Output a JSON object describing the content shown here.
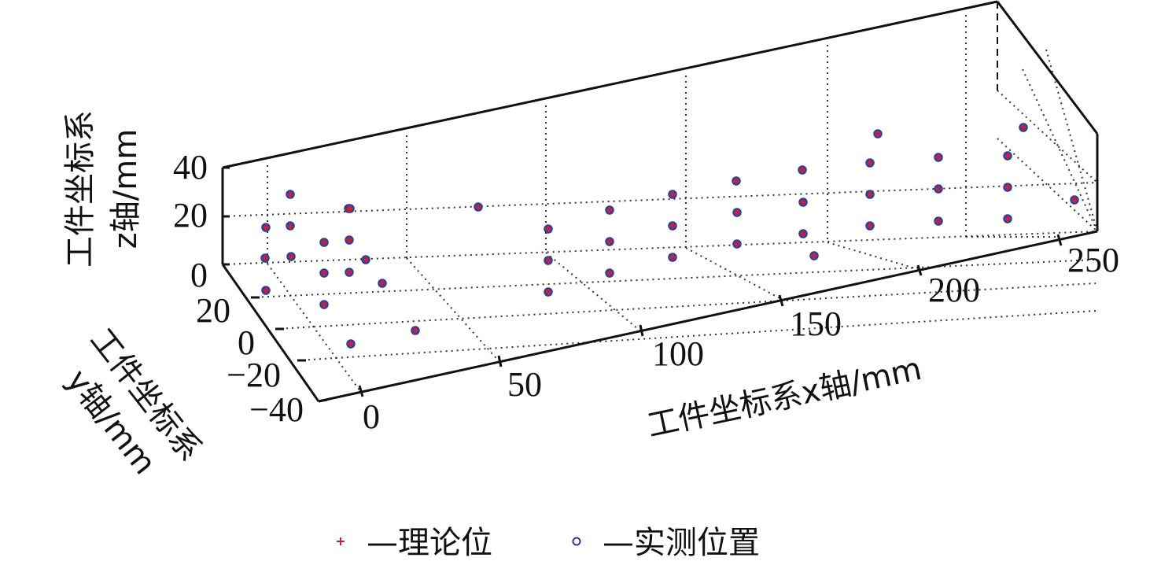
{
  "chart_data": {
    "type": "scatter",
    "projection": "3d",
    "title": "",
    "axes": {
      "x": {
        "label": "工件坐标系x轴/mm",
        "ticks": [
          "0",
          "50",
          "100",
          "150",
          "200",
          "250"
        ]
      },
      "y": {
        "label_line1": "工件坐标系",
        "label_line2": "y轴/mm",
        "ticks": [
          "20",
          "0",
          "−20",
          "−40"
        ]
      },
      "z": {
        "label_line1": "工件坐标系",
        "label_line2": "z轴/mm",
        "ticks": [
          "0",
          "20",
          "40"
        ]
      }
    },
    "grid": true,
    "legend": {
      "position": "bottom-center",
      "items": [
        {
          "marker": "plus",
          "label": "—理论位",
          "color": "#cc1f2f"
        },
        {
          "marker": "circle",
          "label": "—实测位置",
          "color": "#2a3d8f"
        }
      ]
    },
    "colors": {
      "theory": "#cc1f2f",
      "measured": "#2a3d8f"
    },
    "series": [
      {
        "name": "理论位",
        "points": [
          [
            369,
            248
          ],
          [
            338,
            289
          ],
          [
            369,
            288
          ],
          [
            337,
            328
          ],
          [
            370,
            326
          ],
          [
            338,
            369
          ],
          [
            412,
            308
          ],
          [
            444,
            305
          ],
          [
            443,
            266
          ],
          [
            412,
            347
          ],
          [
            444,
            346
          ],
          [
            465,
            330
          ],
          [
            486,
            360
          ],
          [
            412,
            387
          ],
          [
            446,
            437
          ],
          [
            528,
            420
          ],
          [
            608,
            263
          ],
          [
            697,
            291
          ],
          [
            697,
            331
          ],
          [
            697,
            371
          ],
          [
            775,
            267
          ],
          [
            775,
            307
          ],
          [
            775,
            347
          ],
          [
            855,
            247
          ],
          [
            855,
            287
          ],
          [
            855,
            327
          ],
          [
            936,
            230
          ],
          [
            937,
            270
          ],
          [
            937,
            310
          ],
          [
            1020,
            216
          ],
          [
            1021,
            257
          ],
          [
            1021,
            297
          ],
          [
            1035,
            325
          ],
          [
            1106,
            207
          ],
          [
            1106,
            247
          ],
          [
            1106,
            287
          ],
          [
            1116,
            170
          ],
          [
            1193,
            200
          ],
          [
            1193,
            240
          ],
          [
            1193,
            281
          ],
          [
            1281,
            198
          ],
          [
            1281,
            238
          ],
          [
            1281,
            278
          ],
          [
            1301,
            162
          ],
          [
            1366,
            254
          ],
          [
            445,
            265
          ]
        ]
      },
      {
        "name": "实测位置",
        "points": [
          [
            369,
            247
          ],
          [
            338,
            289
          ],
          [
            369,
            287
          ],
          [
            337,
            328
          ],
          [
            370,
            326
          ],
          [
            338,
            369
          ],
          [
            412,
            308
          ],
          [
            444,
            305
          ],
          [
            443,
            265
          ],
          [
            412,
            347
          ],
          [
            444,
            346
          ],
          [
            465,
            330
          ],
          [
            486,
            360
          ],
          [
            412,
            387
          ],
          [
            446,
            437
          ],
          [
            528,
            420
          ],
          [
            608,
            263
          ],
          [
            697,
            291
          ],
          [
            697,
            331
          ],
          [
            697,
            371
          ],
          [
            775,
            267
          ],
          [
            775,
            307
          ],
          [
            775,
            347
          ],
          [
            855,
            247
          ],
          [
            855,
            287
          ],
          [
            855,
            327
          ],
          [
            936,
            230
          ],
          [
            937,
            270
          ],
          [
            937,
            310
          ],
          [
            1020,
            216
          ],
          [
            1021,
            257
          ],
          [
            1021,
            297
          ],
          [
            1035,
            325
          ],
          [
            1106,
            207
          ],
          [
            1106,
            247
          ],
          [
            1106,
            287
          ],
          [
            1116,
            170
          ],
          [
            1193,
            200
          ],
          [
            1193,
            240
          ],
          [
            1193,
            281
          ],
          [
            1281,
            198
          ],
          [
            1281,
            238
          ],
          [
            1281,
            278
          ],
          [
            1301,
            162
          ],
          [
            1366,
            254
          ],
          [
            445,
            265
          ]
        ]
      }
    ]
  }
}
